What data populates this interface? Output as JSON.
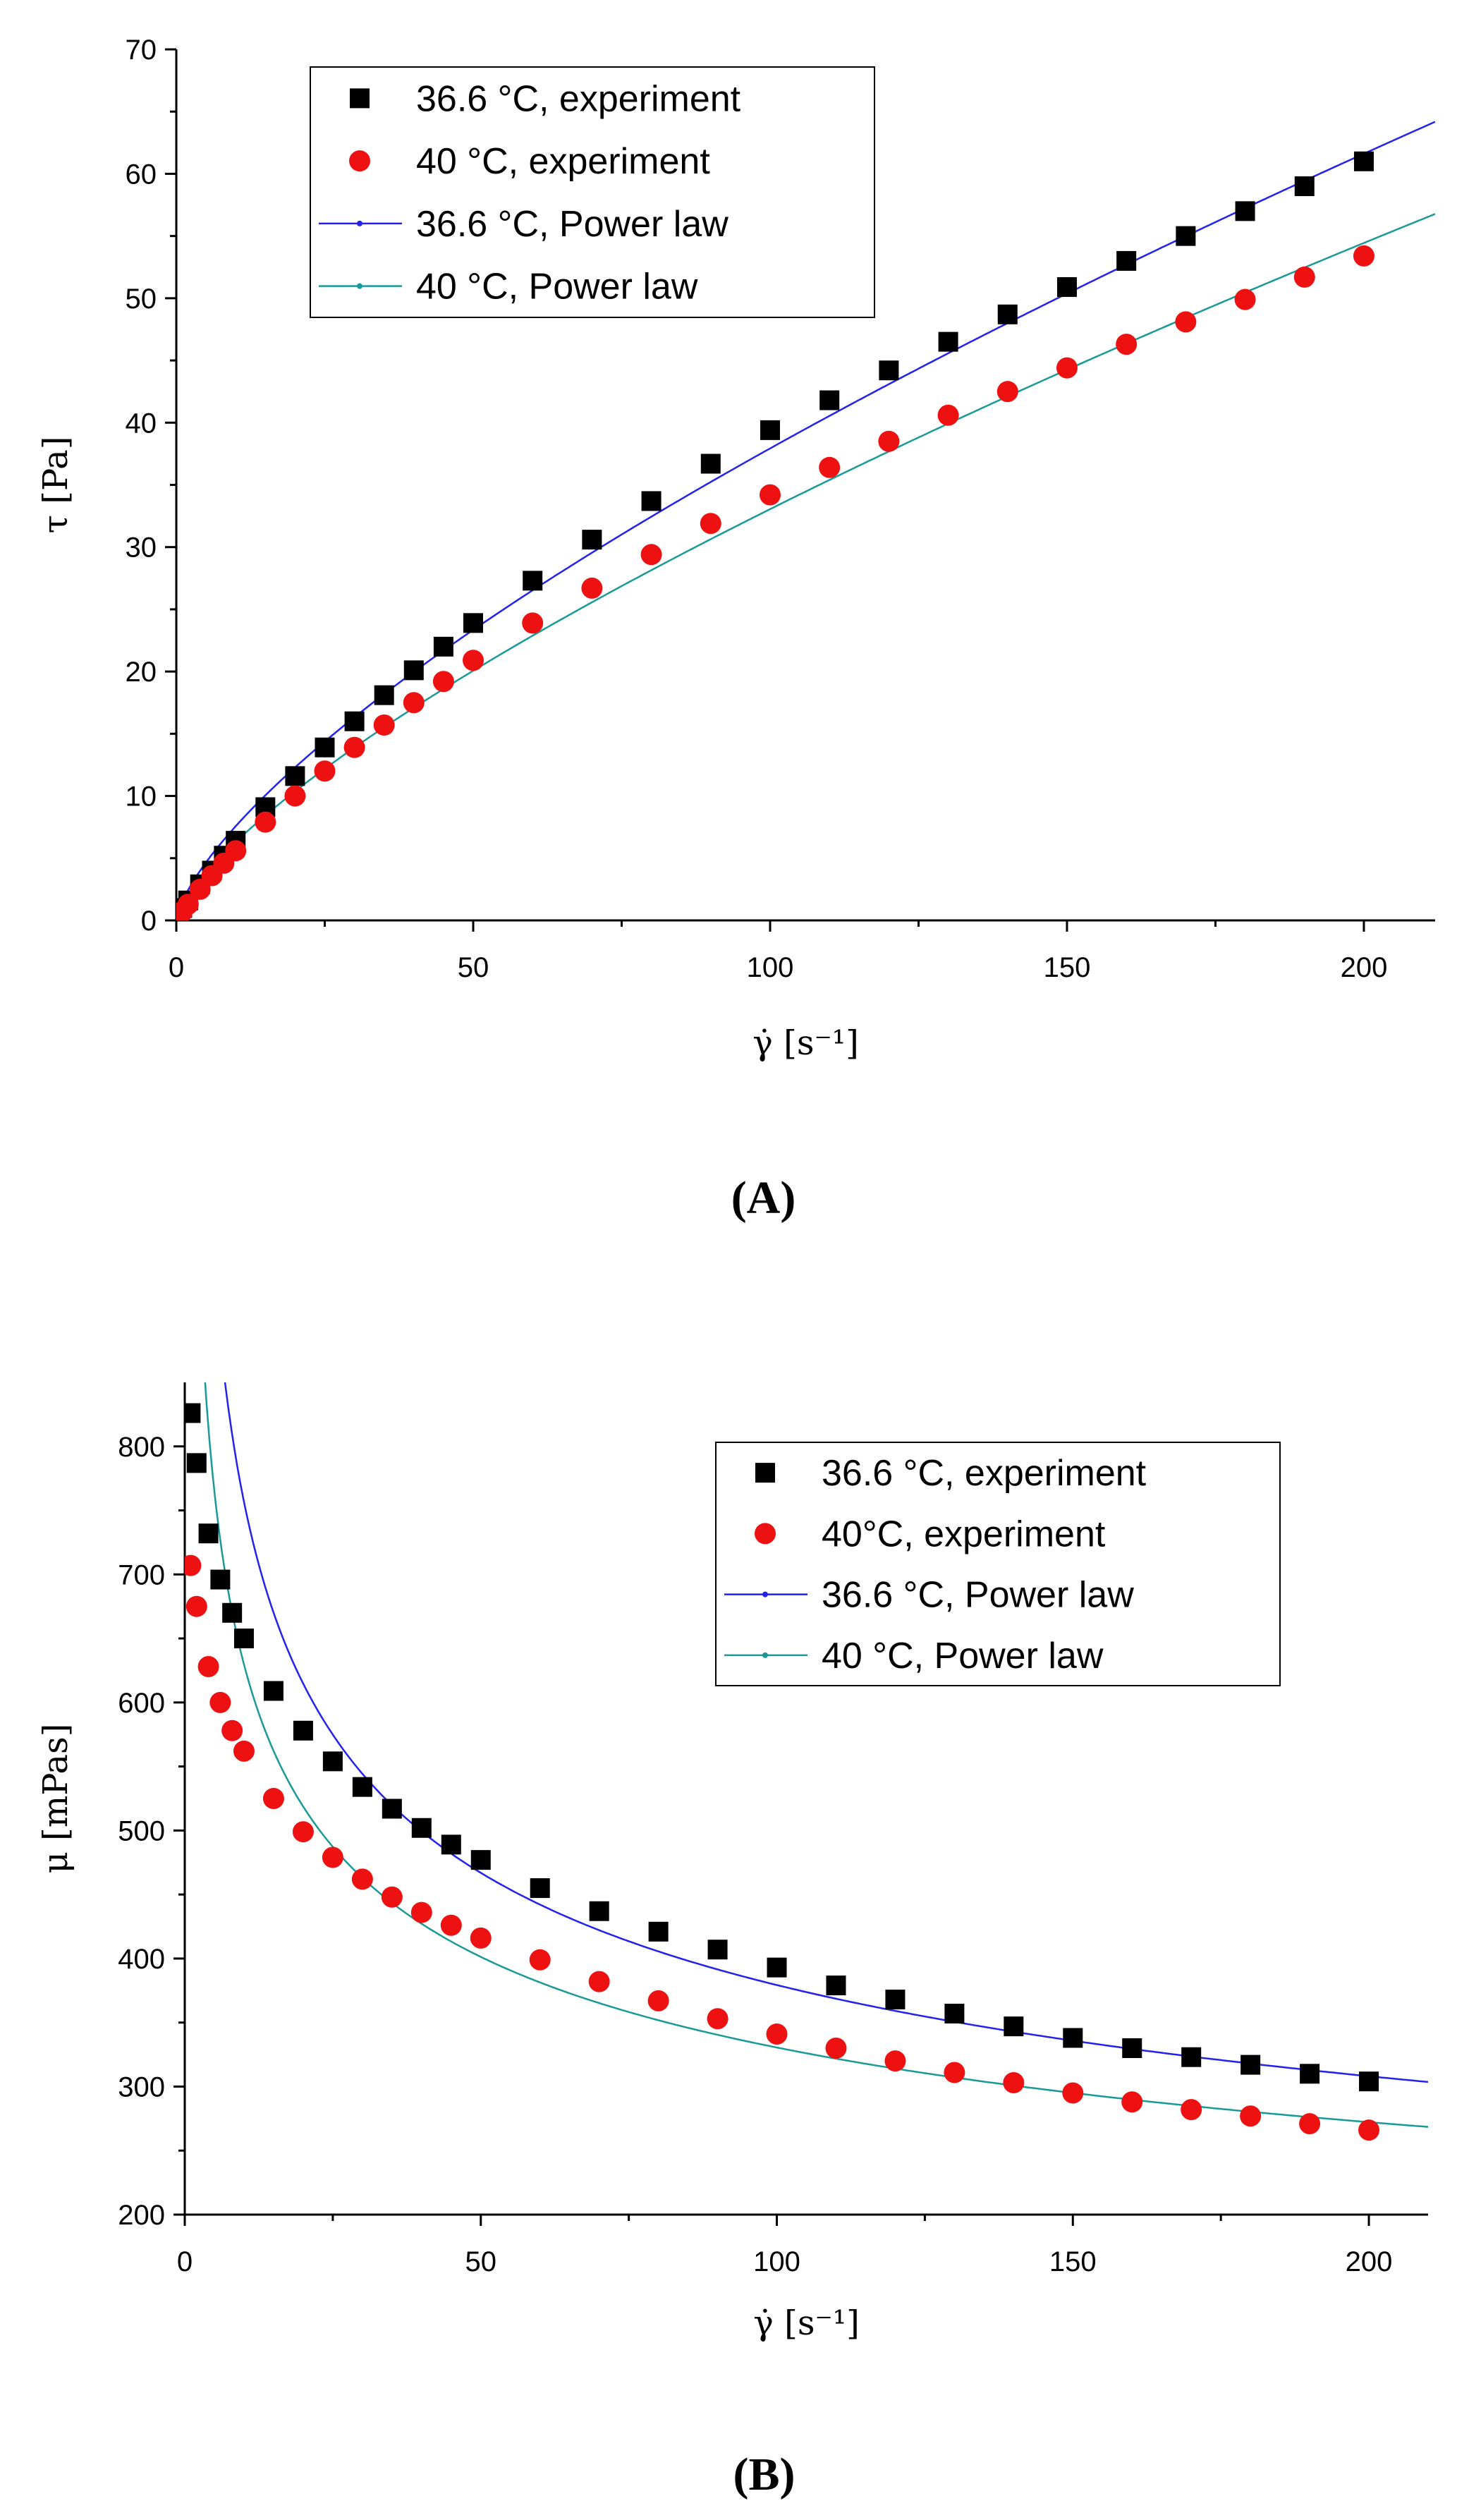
{
  "chart_data": [
    {
      "type": "scatter",
      "panel_label": "A",
      "xlabel": "γ̇ [s⁻¹]",
      "ylabel": "τ [Pa]",
      "xlim": [
        0,
        212
      ],
      "ylim": [
        0,
        70
      ],
      "xticks": [
        0,
        50,
        100,
        150,
        200
      ],
      "yticks": [
        0,
        10,
        20,
        30,
        40,
        50,
        60,
        70
      ],
      "legend_position": "top-left",
      "series": [
        {
          "name": "36.6 °C, experiment",
          "kind": "scatter",
          "marker": "square",
          "color": "#000000",
          "x": [
            1,
            2,
            4,
            6,
            8,
            10,
            15,
            20,
            25,
            30,
            35,
            40,
            45,
            50,
            60,
            70,
            80,
            90,
            100,
            110,
            120,
            130,
            140,
            150,
            160,
            170,
            180,
            190,
            200
          ],
          "y": [
            1.0,
            1.6,
            2.9,
            4.0,
            5.2,
            6.4,
            9.1,
            11.6,
            13.9,
            16.0,
            18.1,
            20.1,
            22.0,
            23.9,
            27.3,
            30.6,
            33.7,
            36.7,
            39.4,
            41.8,
            44.2,
            46.5,
            48.7,
            50.9,
            53.0,
            55.0,
            57.0,
            59.0,
            61.0
          ]
        },
        {
          "name": "40 °C, experiment",
          "kind": "scatter",
          "marker": "circle",
          "color": "#ee1111",
          "x": [
            1,
            2,
            4,
            6,
            8,
            10,
            15,
            20,
            25,
            30,
            35,
            40,
            45,
            50,
            60,
            70,
            80,
            90,
            100,
            110,
            120,
            130,
            140,
            150,
            160,
            170,
            180,
            190,
            200
          ],
          "y": [
            0.7,
            1.3,
            2.5,
            3.6,
            4.6,
            5.6,
            7.9,
            10.0,
            12.0,
            13.9,
            15.7,
            17.5,
            19.2,
            20.9,
            23.9,
            26.7,
            29.4,
            31.9,
            34.2,
            36.4,
            38.5,
            40.6,
            42.5,
            44.4,
            46.3,
            48.1,
            49.9,
            51.7,
            53.4
          ]
        },
        {
          "name": "36.6 °C, Power law",
          "kind": "line",
          "color": "#2222ee",
          "K": 1.51,
          "n": 0.7
        },
        {
          "name": "40 °C, Power law",
          "kind": "line",
          "color": "#1a9999",
          "K": 1.2,
          "n": 0.72
        }
      ]
    },
    {
      "type": "scatter",
      "panel_label": "B",
      "xlabel": "γ̇ [s⁻¹]",
      "ylabel": "μ [mPas]",
      "xlim": [
        0,
        210
      ],
      "ylim": [
        200,
        850
      ],
      "xticks": [
        0,
        50,
        100,
        150,
        200
      ],
      "yticks": [
        200,
        300,
        400,
        500,
        600,
        700,
        800
      ],
      "legend_position": "top-right",
      "series": [
        {
          "name": "36.6 °C, experiment",
          "kind": "scatter",
          "marker": "square",
          "color": "#000000",
          "x": [
            1,
            2,
            4,
            6,
            8,
            10,
            15,
            20,
            25,
            30,
            35,
            40,
            45,
            50,
            60,
            70,
            80,
            90,
            100,
            110,
            120,
            130,
            140,
            150,
            160,
            170,
            180,
            190,
            200
          ],
          "y": [
            826,
            787,
            732,
            696,
            670,
            650,
            609,
            578,
            554,
            534,
            517,
            502,
            489,
            477,
            455,
            437,
            421,
            407,
            393,
            379,
            368,
            357,
            347,
            338,
            330,
            323,
            317,
            310,
            304
          ]
        },
        {
          "name": "40°C, experiment",
          "kind": "scatter",
          "marker": "circle",
          "color": "#ee1111",
          "x": [
            1,
            2,
            4,
            6,
            8,
            10,
            15,
            20,
            25,
            30,
            35,
            40,
            45,
            50,
            60,
            70,
            80,
            90,
            100,
            110,
            120,
            130,
            140,
            150,
            160,
            170,
            180,
            190,
            200
          ],
          "y": [
            707,
            675,
            628,
            600,
            578,
            562,
            525,
            499,
            479,
            462,
            448,
            436,
            426,
            416,
            399,
            382,
            367,
            353,
            341,
            330,
            320,
            311,
            303,
            295,
            288,
            282,
            277,
            271,
            266
          ]
        },
        {
          "name": "36.6 °C, Power law",
          "kind": "line",
          "color": "#2222ee",
          "K": 1510,
          "n": 0.7
        },
        {
          "name": "40 °C, Power law",
          "kind": "line",
          "color": "#1a9999",
          "K": 1200,
          "n": 0.72
        }
      ]
    }
  ]
}
